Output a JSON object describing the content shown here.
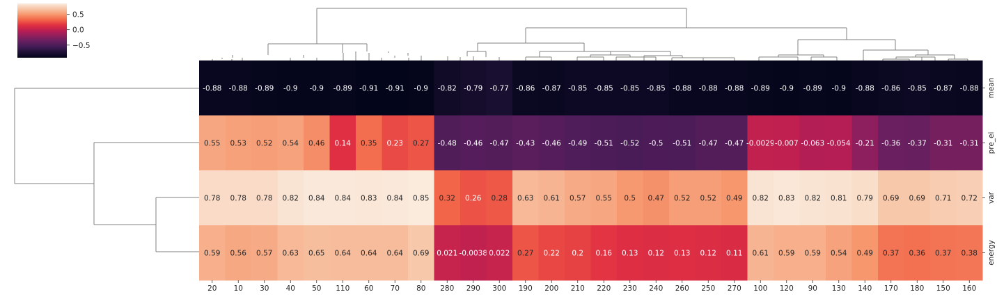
{
  "chart_data": {
    "type": "heatmap",
    "title": "",
    "xlabel": "",
    "ylabel": "",
    "columns": [
      "20",
      "10",
      "30",
      "40",
      "50",
      "110",
      "60",
      "70",
      "80",
      "280",
      "290",
      "300",
      "190",
      "200",
      "210",
      "220",
      "230",
      "240",
      "260",
      "250",
      "270",
      "100",
      "120",
      "90",
      "130",
      "140",
      "170",
      "180",
      "150",
      "160"
    ],
    "rows": [
      "mean",
      "pre_ei",
      "var",
      "energy"
    ],
    "values": [
      [
        -0.88,
        -0.88,
        -0.89,
        -0.9,
        -0.9,
        -0.89,
        -0.91,
        -0.91,
        -0.9,
        -0.82,
        -0.79,
        -0.77,
        -0.86,
        -0.87,
        -0.85,
        -0.85,
        -0.85,
        -0.85,
        -0.88,
        -0.88,
        -0.88,
        -0.89,
        -0.9,
        -0.89,
        -0.9,
        -0.88,
        -0.86,
        -0.85,
        -0.87,
        -0.88
      ],
      [
        0.55,
        0.53,
        0.52,
        0.54,
        0.46,
        0.14,
        0.35,
        0.23,
        0.27,
        -0.48,
        -0.46,
        -0.47,
        -0.43,
        -0.46,
        -0.49,
        -0.51,
        -0.52,
        -0.5,
        -0.51,
        -0.47,
        -0.47,
        -0.0029,
        -0.007,
        -0.063,
        -0.054,
        -0.21,
        -0.36,
        -0.37,
        -0.31,
        -0.31
      ],
      [
        0.78,
        0.78,
        0.78,
        0.82,
        0.84,
        0.84,
        0.83,
        0.84,
        0.85,
        0.32,
        0.26,
        0.28,
        0.63,
        0.61,
        0.57,
        0.55,
        0.5,
        0.47,
        0.52,
        0.52,
        0.49,
        0.82,
        0.83,
        0.82,
        0.81,
        0.79,
        0.69,
        0.69,
        0.71,
        0.72
      ],
      [
        0.59,
        0.56,
        0.57,
        0.63,
        0.65,
        0.64,
        0.64,
        0.64,
        0.69,
        0.021,
        -0.0038,
        0.022,
        0.27,
        0.22,
        0.2,
        0.16,
        0.13,
        0.12,
        0.13,
        0.12,
        0.11,
        0.61,
        0.59,
        0.59,
        0.54,
        0.49,
        0.37,
        0.36,
        0.37,
        0.38
      ]
    ],
    "labels": [
      [
        "-0.88",
        "-0.88",
        "-0.89",
        "-0.9",
        "-0.9",
        "-0.89",
        "-0.91",
        "-0.91",
        "-0.9",
        "-0.82",
        "-0.79",
        "-0.77",
        "-0.86",
        "-0.87",
        "-0.85",
        "-0.85",
        "-0.85",
        "-0.85",
        "-0.88",
        "-0.88",
        "-0.88",
        "-0.89",
        "-0.9",
        "-0.89",
        "-0.9",
        "-0.88",
        "-0.86",
        "-0.85",
        "-0.87",
        "-0.88"
      ],
      [
        "0.55",
        "0.53",
        "0.52",
        "0.54",
        "0.46",
        "0.14",
        "0.35",
        "0.23",
        "0.27",
        "-0.48",
        "-0.46",
        "-0.47",
        "-0.43",
        "-0.46",
        "-0.49",
        "-0.51",
        "-0.52",
        "-0.5",
        "-0.51",
        "-0.47",
        "-0.47",
        "-0.0029",
        "-0.007",
        "-0.063",
        "-0.054",
        "-0.21",
        "-0.36",
        "-0.37",
        "-0.31",
        "-0.31"
      ],
      [
        "0.78",
        "0.78",
        "0.78",
        "0.82",
        "0.84",
        "0.84",
        "0.83",
        "0.84",
        "0.85",
        "0.32",
        "0.26",
        "0.28",
        "0.63",
        "0.61",
        "0.57",
        "0.55",
        "0.5",
        "0.47",
        "0.52",
        "0.52",
        "0.49",
        "0.82",
        "0.83",
        "0.82",
        "0.81",
        "0.79",
        "0.69",
        "0.69",
        "0.71",
        "0.72"
      ],
      [
        "0.59",
        "0.56",
        "0.57",
        "0.63",
        "0.65",
        "0.64",
        "0.64",
        "0.64",
        "0.69",
        "0.021",
        "-0.0038",
        "0.022",
        "0.27",
        "0.22",
        "0.2",
        "0.16",
        "0.13",
        "0.12",
        "0.13",
        "0.12",
        "0.11",
        "0.61",
        "0.59",
        "0.59",
        "0.54",
        "0.49",
        "0.37",
        "0.36",
        "0.37",
        "0.38"
      ]
    ],
    "colorbar": {
      "vmin": -0.91,
      "vmax": 0.85,
      "ticks": [
        0.5,
        0.0,
        -0.5
      ],
      "tick_labels": [
        "0.5",
        "0.0",
        "−0.5"
      ],
      "colormap": "rocket",
      "placement": "top-left"
    },
    "column_dendrogram": true,
    "row_dendrogram": true,
    "colors": {
      "dendrogram": "#808080",
      "text_on_dark": "#ffffff",
      "text_on_light": "#262626"
    }
  }
}
